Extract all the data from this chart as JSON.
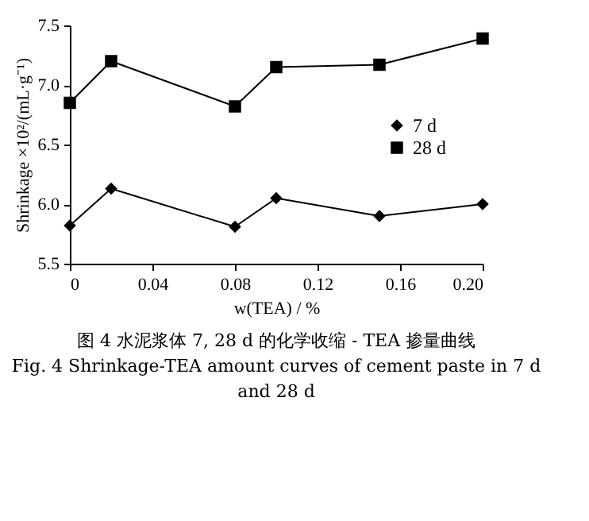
{
  "chart_data": {
    "type": "line",
    "xlabel": "w(TEA) / %",
    "ylabel": "Shrinkage ×10²/(mL·g⁻¹)",
    "x": [
      0,
      0.02,
      0.08,
      0.1,
      0.15,
      0.2
    ],
    "series": [
      {
        "name": "7 d",
        "color": "#000000",
        "marker": "diamond",
        "values": [
          5.82,
          6.13,
          5.81,
          6.05,
          5.9,
          6.0
        ]
      },
      {
        "name": "28 d",
        "color": "#000000",
        "marker": "square",
        "values": [
          6.85,
          7.2,
          6.82,
          7.15,
          7.17,
          7.39
        ]
      }
    ],
    "xlim": [
      0,
      0.2
    ],
    "xticks": [
      {
        "value": 0,
        "label": "0"
      },
      0.04,
      0.08,
      0.12,
      0.16,
      {
        "value": 0.2,
        "label": "0.20"
      }
    ],
    "ylim": [
      5.5,
      7.5
    ],
    "yticks": [
      {
        "value": 5.5,
        "label": "5.5"
      },
      {
        "value": 6,
        "label": "6.0"
      },
      {
        "value": 6.5,
        "label": "6.5"
      },
      {
        "value": 7,
        "label": "7.0"
      },
      {
        "value": 7.5,
        "label": "7.5"
      }
    ],
    "grid": false,
    "legend": "right",
    "line_style": "solid",
    "annotations": [
      "图 4  水泥浆体 7, 28 d 的化学收缩 - TEA 掺量曲线",
      "Fig. 4  Shrinkage-TEA amount curves of cement paste in 7 d and 28 d"
    ]
  }
}
